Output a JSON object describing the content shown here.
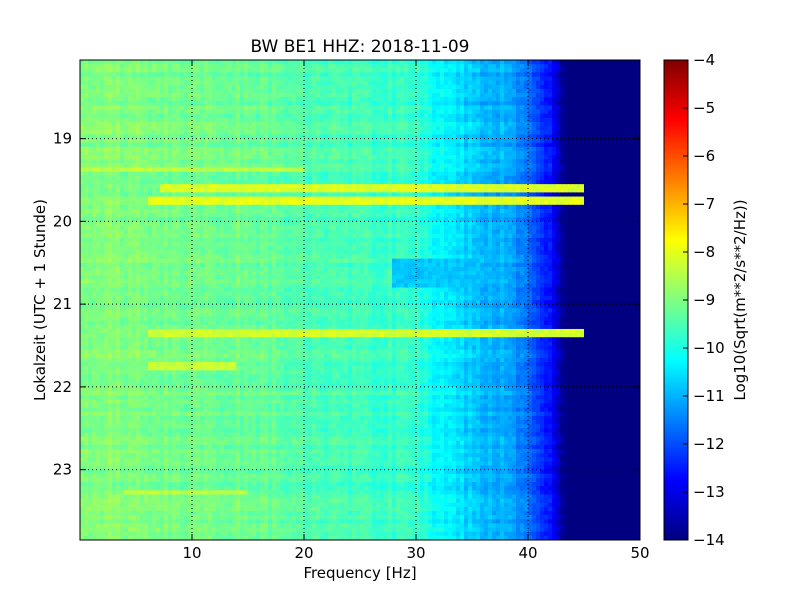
{
  "chart_data": {
    "type": "heatmap",
    "title": "BW BE1 HHZ: 2018-11-09",
    "xlabel": "Frequency [Hz]",
    "ylabel": "Lokalzeit (UTC + 1 Stunde)",
    "xlim": [
      0,
      50
    ],
    "ylim": [
      18.05,
      23.85
    ],
    "x_ticks": [
      10,
      20,
      30,
      40,
      50
    ],
    "y_ticks": [
      19,
      20,
      21,
      22,
      23
    ],
    "y_inverted": true,
    "grid": true,
    "colormap": "jet",
    "colorbar": {
      "label": "Log10(Sqrt(m**2/s**2/Hz))",
      "range": [
        -14,
        -4
      ],
      "ticks": [
        -14,
        -13,
        -12,
        -11,
        -10,
        -9,
        -8,
        -7,
        -6,
        -5,
        -4
      ]
    },
    "frequency_profile": {
      "frequency_hz": [
        0,
        5,
        10,
        15,
        20,
        25,
        28,
        30,
        32,
        34,
        36,
        38,
        40,
        42,
        43.5,
        45,
        50
      ],
      "level": [
        -8.9,
        -9.0,
        -9.1,
        -9.2,
        -9.45,
        -9.6,
        -9.7,
        -9.8,
        -10.3,
        -10.6,
        -10.85,
        -11.1,
        -11.6,
        -12.6,
        -14.0,
        -14.0,
        -14.0
      ]
    },
    "features": [
      {
        "kind": "band",
        "time": 19.6,
        "frequency_range": [
          7,
          45
        ],
        "level": -8.1
      },
      {
        "kind": "band",
        "time": 19.77,
        "frequency_range": [
          6,
          45
        ],
        "level": -8.0
      },
      {
        "kind": "band",
        "time": 21.37,
        "frequency_range": [
          6,
          45
        ],
        "level": -8.2
      },
      {
        "kind": "band",
        "time": 19.38,
        "frequency_range": [
          0,
          20
        ],
        "level": -8.4
      },
      {
        "kind": "band",
        "time": 21.75,
        "frequency_range": [
          6,
          14
        ],
        "level": -8.3
      },
      {
        "kind": "band",
        "time": 23.28,
        "frequency_range": [
          4,
          15
        ],
        "level": -8.4
      },
      {
        "kind": "patch",
        "time_range": [
          20.45,
          20.78
        ],
        "frequency_range": [
          28,
          37
        ],
        "level": -10.8
      }
    ]
  }
}
